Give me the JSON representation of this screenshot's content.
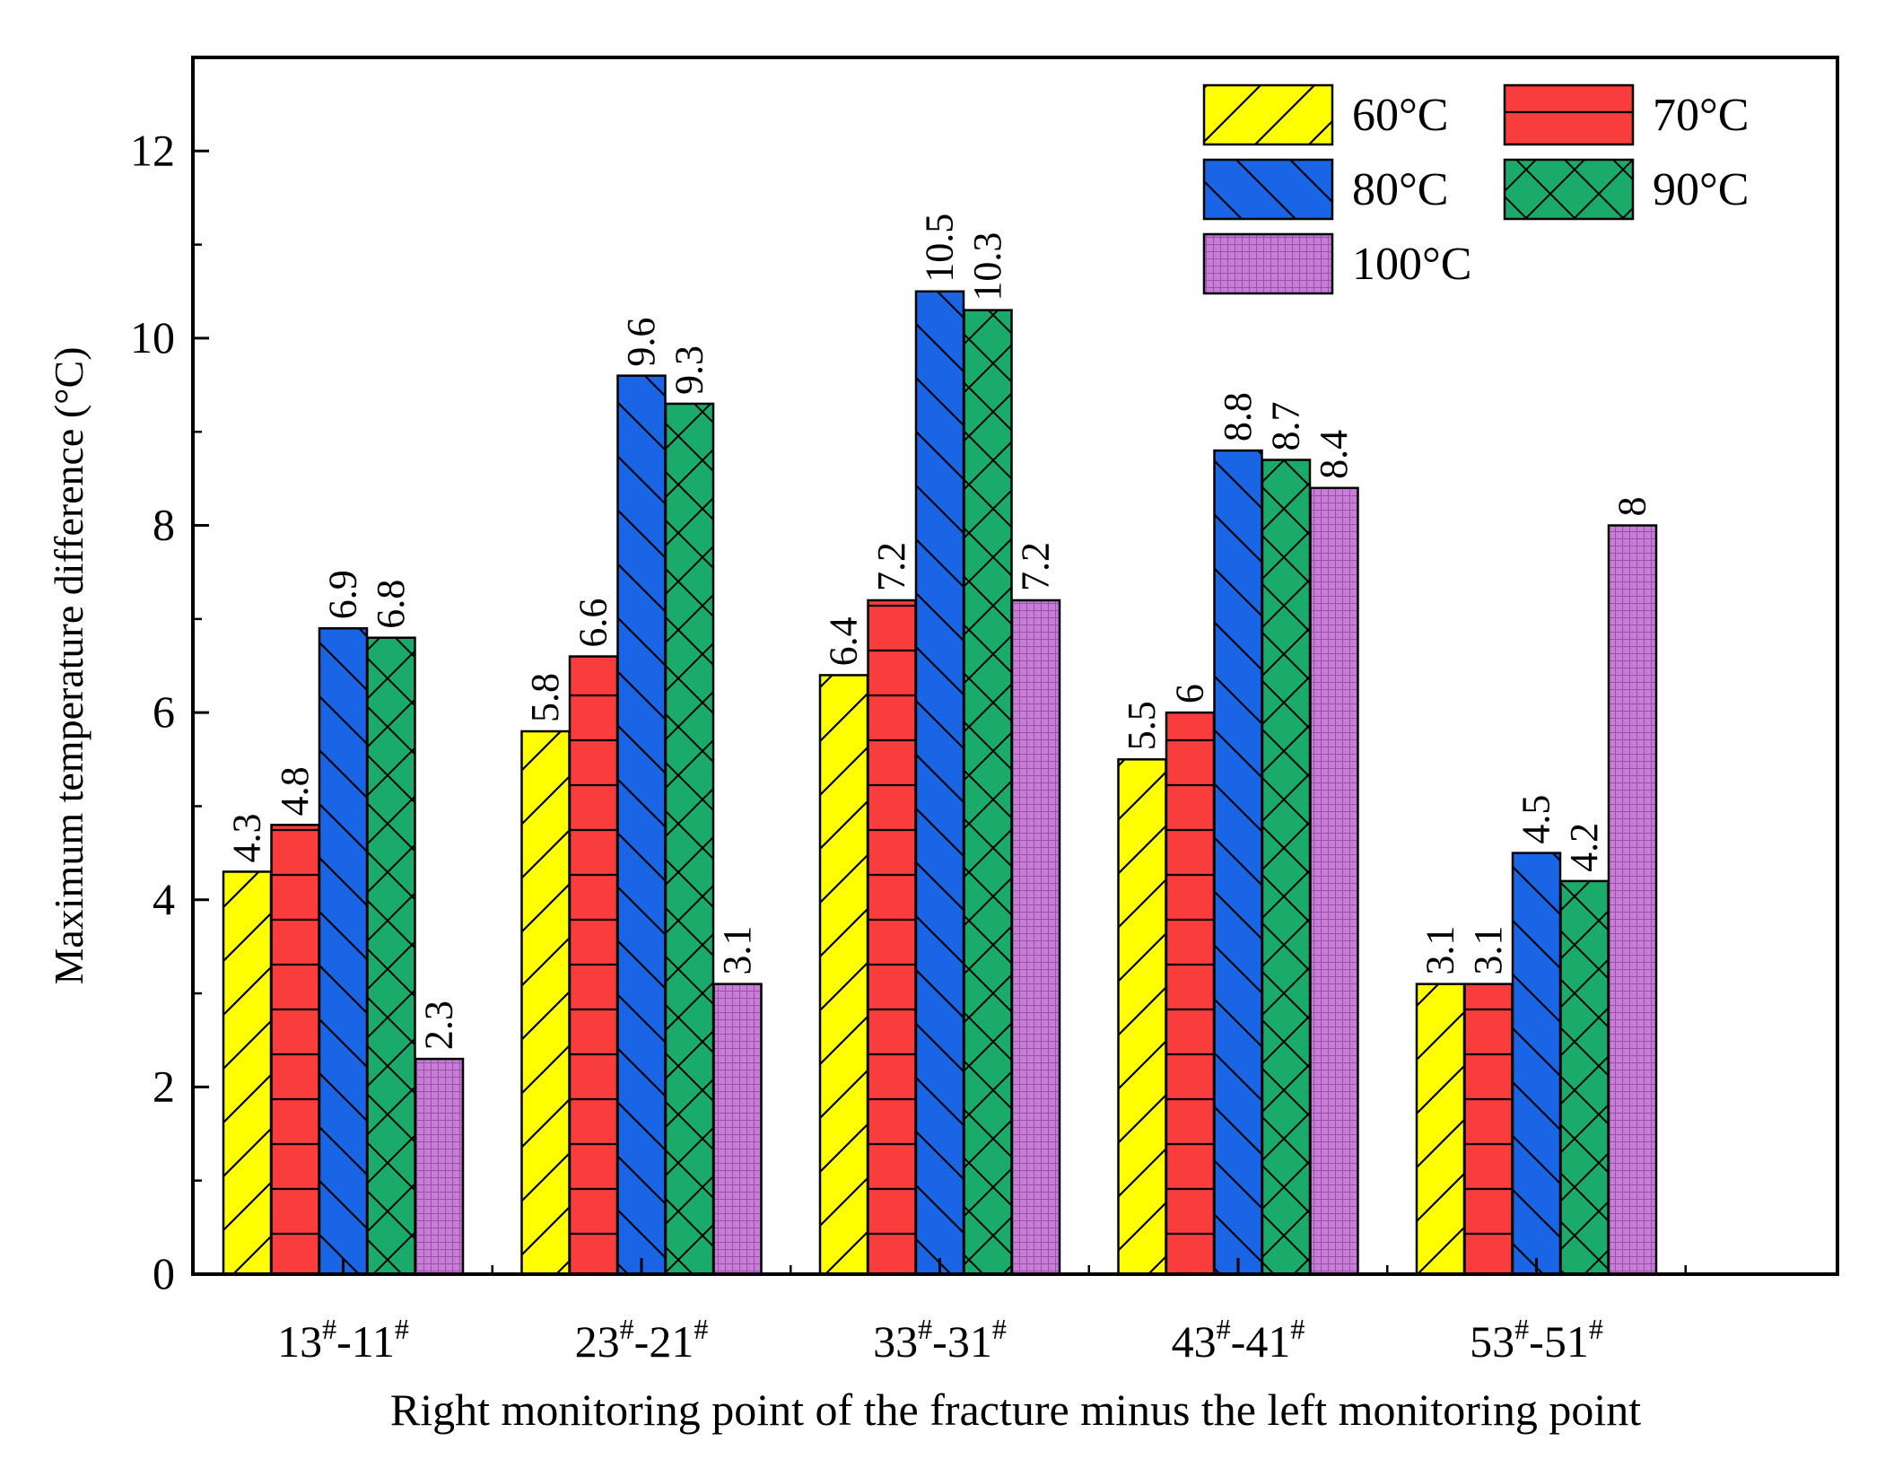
{
  "chart_data": {
    "type": "bar",
    "title": "",
    "xlabel": "Right monitoring point of the fracture minus the left monitoring point",
    "ylabel": "Maximum temperature difference (°C)",
    "ylim": [
      0,
      13
    ],
    "yticks": [
      0,
      2,
      4,
      6,
      8,
      10,
      12
    ],
    "grid": false,
    "legend_position": "top-right",
    "categories": [
      {
        "a": "13",
        "b": "11",
        "sup": "#"
      },
      {
        "a": "23",
        "b": "21",
        "sup": "#"
      },
      {
        "a": "33",
        "b": "31",
        "sup": "#"
      },
      {
        "a": "43",
        "b": "41",
        "sup": "#"
      },
      {
        "a": "53",
        "b": "51",
        "sup": "#"
      }
    ],
    "series": [
      {
        "name": "60°C",
        "color": "#ffff00",
        "pattern": "forward-diagonal",
        "values": [
          4.3,
          5.8,
          6.4,
          5.5,
          3.1
        ],
        "labels": [
          "4.3",
          "5.8",
          "6.4",
          "5.5",
          "3.1"
        ]
      },
      {
        "name": "70°C",
        "color": "#f93c3c",
        "pattern": "horizontal",
        "values": [
          4.8,
          6.6,
          7.2,
          6.0,
          3.1
        ],
        "labels": [
          "4.8",
          "6.6",
          "7.2",
          "6",
          "3.1"
        ]
      },
      {
        "name": "80°C",
        "color": "#1a64e6",
        "pattern": "back-diagonal",
        "values": [
          6.9,
          9.6,
          10.5,
          8.8,
          4.5
        ],
        "labels": [
          "6.9",
          "9.6",
          "10.5",
          "8.8",
          "4.5"
        ]
      },
      {
        "name": "90°C",
        "color": "#1aab6b",
        "pattern": "cross-hatch",
        "values": [
          6.8,
          9.3,
          10.3,
          8.7,
          4.2
        ],
        "labels": [
          "6.8",
          "9.3",
          "10.3",
          "8.7",
          "4.2"
        ]
      },
      {
        "name": "100°C",
        "color": "#c77dd6",
        "pattern": "fine-grid",
        "values": [
          2.3,
          3.1,
          7.2,
          8.4,
          8.0
        ],
        "labels": [
          "2.3",
          "3.1",
          "7.2",
          "8.4",
          "8"
        ]
      }
    ]
  }
}
